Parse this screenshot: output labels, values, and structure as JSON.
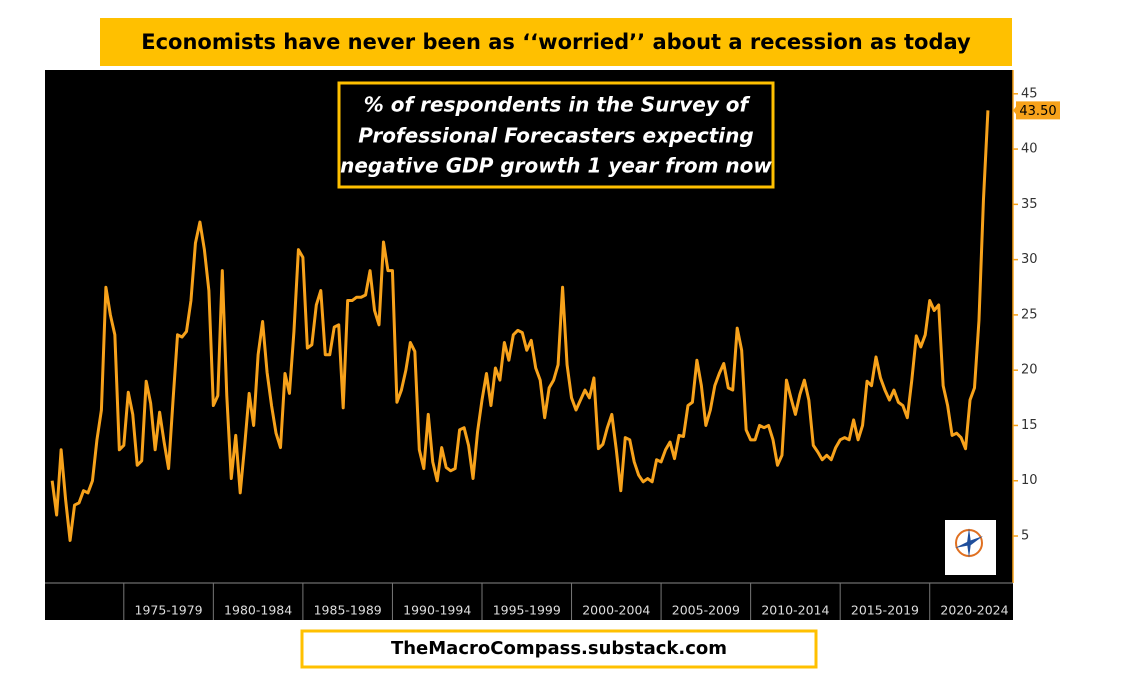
{
  "chart_data": {
    "type": "line",
    "title": "Economists have never been as ‘‘worried’’ about a recession as today",
    "subtitle_lines": [
      "% of respondents in the Survey of",
      "Professional Forecasters expecting",
      "negative GDP growth 1 year from now"
    ],
    "footer": "TheMacroCompass.substack.com",
    "last_value_label": "43.50",
    "xlim": [
      1970.6,
      2024.65
    ],
    "xticks": [
      {
        "value": 1975,
        "label": "1975-1979"
      },
      {
        "value": 1980,
        "label": "1980-1984"
      },
      {
        "value": 1985,
        "label": "1985-1989"
      },
      {
        "value": 1990,
        "label": "1990-1994"
      },
      {
        "value": 1995,
        "label": "1995-1999"
      },
      {
        "value": 2000,
        "label": "2000-2004"
      },
      {
        "value": 2005,
        "label": "2005-2009"
      },
      {
        "value": 2010,
        "label": "2010-2014"
      },
      {
        "value": 2015,
        "label": "2015-2019"
      },
      {
        "value": 2020,
        "label": "2020-2024"
      }
    ],
    "ylim": [
      0.75,
      46.7
    ],
    "yticks": [
      5,
      10,
      15,
      20,
      25,
      30,
      35,
      40,
      45
    ],
    "x": [
      1971,
      1971.25,
      1971.5,
      1971.75,
      1972,
      1972.25,
      1972.5,
      1972.75,
      1973,
      1973.25,
      1973.5,
      1973.75,
      1974,
      1974.25,
      1974.5,
      1974.75,
      1975,
      1975.25,
      1975.5,
      1975.75,
      1976,
      1976.25,
      1976.5,
      1976.75,
      1977,
      1977.25,
      1977.5,
      1977.75,
      1978,
      1978.25,
      1978.5,
      1978.75,
      1979,
      1979.25,
      1979.5,
      1979.75,
      1980,
      1980.25,
      1980.5,
      1980.75,
      1981,
      1981.25,
      1981.5,
      1981.75,
      1982,
      1982.25,
      1982.5,
      1982.75,
      1983,
      1983.25,
      1983.5,
      1983.75,
      1984,
      1984.25,
      1984.5,
      1984.75,
      1985,
      1985.25,
      1985.5,
      1985.75,
      1986,
      1986.25,
      1986.5,
      1986.75,
      1987,
      1987.25,
      1987.5,
      1987.75,
      1988,
      1988.25,
      1988.5,
      1988.75,
      1989,
      1989.25,
      1989.5,
      1989.75,
      1990,
      1990.25,
      1990.5,
      1990.75,
      1991,
      1991.25,
      1991.5,
      1991.75,
      1992,
      1992.25,
      1992.5,
      1992.75,
      1993,
      1993.25,
      1993.5,
      1993.75,
      1994,
      1994.25,
      1994.5,
      1994.75,
      1995,
      1995.25,
      1995.5,
      1995.75,
      1996,
      1996.25,
      1996.5,
      1996.75,
      1997,
      1997.25,
      1997.5,
      1997.75,
      1998,
      1998.25,
      1998.5,
      1998.75,
      1999,
      1999.25,
      1999.5,
      1999.75,
      2000,
      2000.25,
      2000.5,
      2000.75,
      2001,
      2001.25,
      2001.5,
      2001.75,
      2002,
      2002.25,
      2002.5,
      2002.75,
      2003,
      2003.25,
      2003.5,
      2003.75,
      2004,
      2004.25,
      2004.5,
      2004.75,
      2005,
      2005.25,
      2005.5,
      2005.75,
      2006,
      2006.25,
      2006.5,
      2006.75,
      2007,
      2007.25,
      2007.5,
      2007.75,
      2008,
      2008.25,
      2008.5,
      2008.75,
      2009,
      2009.25,
      2009.5,
      2009.75,
      2010,
      2010.25,
      2010.5,
      2010.75,
      2011,
      2011.25,
      2011.5,
      2011.75,
      2012,
      2012.25,
      2012.5,
      2012.75,
      2013,
      2013.25,
      2013.5,
      2013.75,
      2014,
      2014.25,
      2014.5,
      2014.75,
      2015,
      2015.25,
      2015.5,
      2015.75,
      2016,
      2016.25,
      2016.5,
      2016.75,
      2017,
      2017.25,
      2017.5,
      2017.75,
      2018,
      2018.25,
      2018.5,
      2018.75,
      2019,
      2019.25,
      2019.5,
      2019.75,
      2020,
      2020.25,
      2020.5,
      2020.75,
      2021,
      2021.25,
      2021.5,
      2021.75,
      2022,
      2022.25,
      2022.5,
      2022.75,
      2023,
      2023.25
    ],
    "series": [
      {
        "color": "#f7a21b",
        "values": [
          10,
          6.9,
          12.8,
          8.3,
          4.6,
          7.8,
          8,
          9.1,
          8.9,
          10,
          13.7,
          16.4,
          27.5,
          25,
          23.2,
          12.8,
          13.2,
          18,
          16,
          11.4,
          11.8,
          19,
          17,
          12.8,
          16.2,
          13.5,
          11.1,
          17.3,
          23.2,
          23,
          23.5,
          26.3,
          31.5,
          33.4,
          30.9,
          27.2,
          16.8,
          17.7,
          29,
          17.7,
          10.2,
          14.1,
          8.9,
          13.2,
          17.9,
          15,
          21.4,
          24.4,
          19.8,
          16.8,
          14.3,
          13,
          19.7,
          17.9,
          23.5,
          30.9,
          30.2,
          22,
          22.3,
          25.9,
          27.2,
          21.4,
          21.4,
          23.9,
          24.1,
          16.6,
          26.3,
          26.3,
          26.6,
          26.6,
          26.8,
          29,
          25.4,
          24.1,
          31.6,
          29,
          29,
          17.1,
          18.2,
          20,
          22.5,
          21.7,
          12.8,
          11.1,
          16,
          11.7,
          10,
          13,
          11.2,
          10.9,
          11.1,
          14.6,
          14.8,
          13.2,
          10.2,
          14.4,
          17.3,
          19.7,
          16.8,
          20.2,
          19.1,
          22.5,
          20.9,
          23.2,
          23.6,
          23.4,
          21.8,
          22.7,
          20.2,
          19.1,
          15.7,
          18.4,
          19.1,
          20.5,
          27.5,
          20.5,
          17.5,
          16.4,
          17.3,
          18.2,
          17.5,
          19.3,
          12.9,
          13.3,
          14.8,
          16,
          12.8,
          9.1,
          13.9,
          13.7,
          11.7,
          10.5,
          9.9,
          10.2,
          9.9,
          11.9,
          11.7,
          12.8,
          13.5,
          12,
          14.1,
          14,
          16.8,
          17.1,
          20.9,
          18.6,
          15,
          16.4,
          18.6,
          19.7,
          20.6,
          18.4,
          18.2,
          23.8,
          21.8,
          14.6,
          13.7,
          13.7,
          15,
          14.8,
          15,
          13.7,
          11.4,
          12.3,
          19.1,
          17.5,
          16,
          17.8,
          19.1,
          17.3,
          13.2,
          12.6,
          11.9,
          12.3,
          11.9,
          13,
          13.7,
          13.9,
          13.7,
          15.5,
          13.7,
          15,
          19,
          18.6,
          21.2,
          19.3,
          18.2,
          17.3,
          18.2,
          17.1,
          16.8,
          15.7,
          19.1,
          23.1,
          22.1,
          23.2,
          26.3,
          25.4,
          25.9,
          18.6,
          16.8,
          14.1,
          14.3,
          13.9,
          12.9,
          17.3,
          18.4,
          24.5,
          35.4,
          43.5
        ]
      }
    ]
  }
}
